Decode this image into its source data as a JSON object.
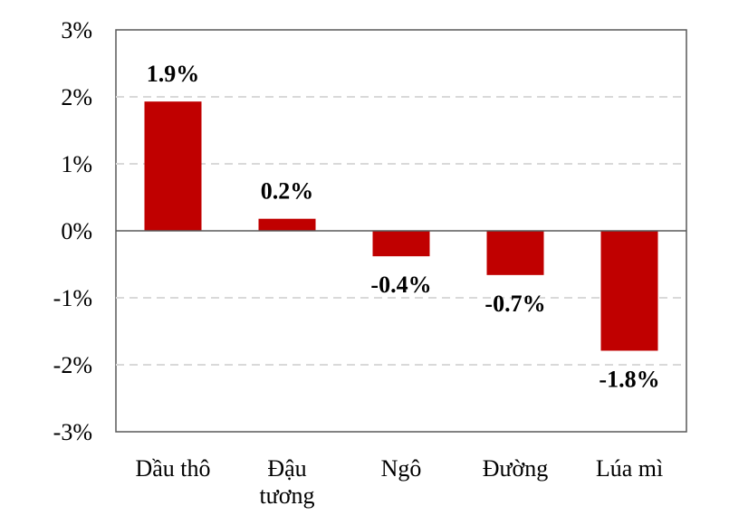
{
  "chart_data": {
    "type": "bar",
    "categories": [
      [
        "Dầu thô"
      ],
      [
        "Đậu",
        "tương"
      ],
      [
        "Ngô"
      ],
      [
        "Đường"
      ],
      [
        "Lúa mì"
      ]
    ],
    "values": [
      1.93,
      0.18,
      -0.38,
      -0.66,
      -1.79
    ],
    "data_labels": [
      "1.9%",
      "0.2%",
      "-0.4%",
      "-0.7%",
      "-1.8%"
    ],
    "y_ticks": [
      3,
      2,
      1,
      0,
      -1,
      -2,
      -3
    ],
    "y_tick_labels": [
      "3%",
      "2%",
      "1%",
      "0%",
      "-1%",
      "-2%",
      "-3%"
    ],
    "ylim": [
      -3,
      3
    ],
    "grid": true,
    "bar_color": "#C00000",
    "grid_color": "#D9D9D9",
    "title": "",
    "xlabel": "",
    "ylabel": ""
  }
}
